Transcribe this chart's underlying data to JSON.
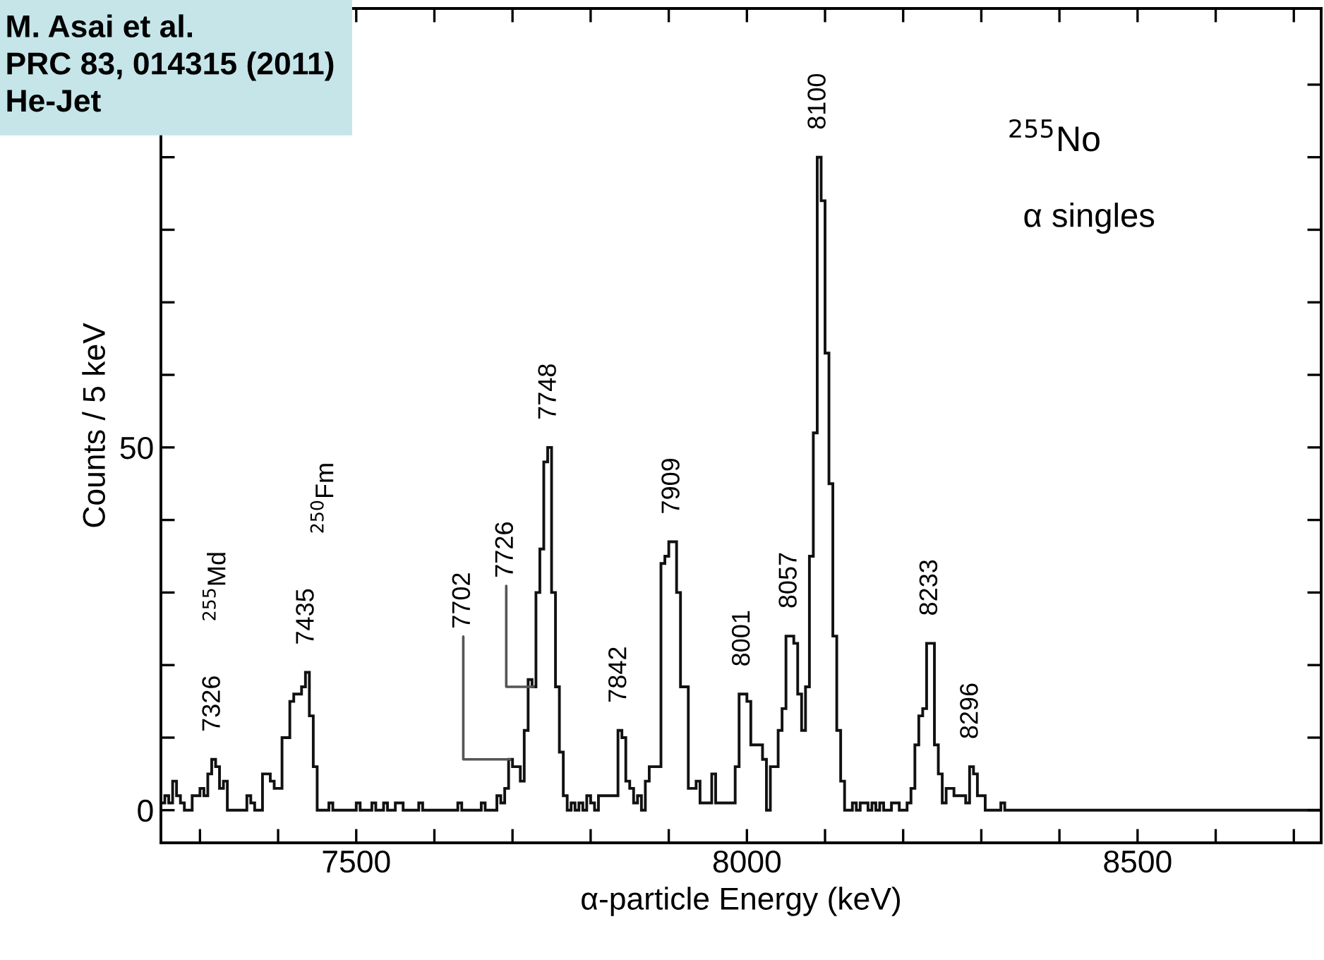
{
  "chart_data": {
    "type": "histogram",
    "xlabel": "α-particle Energy (keV)",
    "ylabel": "Counts / 5 keV",
    "bins": [
      7250,
      7255,
      7260,
      7265,
      7270,
      7275,
      7280,
      7290,
      7300,
      7305,
      7310,
      7315,
      7320,
      7325,
      7330,
      7335,
      7360,
      7365,
      7370,
      7380,
      7390,
      7395,
      7405,
      7415,
      7420,
      7430,
      7435,
      7440,
      7445,
      7450,
      7465,
      7470,
      7500,
      7505,
      7520,
      7525,
      7535,
      7540,
      7550,
      7560,
      7580,
      7585,
      7630,
      7635,
      7660,
      7665,
      7680,
      7685,
      7690,
      7695,
      7700,
      7705,
      7710,
      7715,
      7720,
      7725,
      7730,
      7735,
      7740,
      7745,
      7750,
      7755,
      7760,
      7765,
      7770,
      7775,
      7780,
      7785,
      7790,
      7795,
      7800,
      7805,
      7810,
      7835,
      7840,
      7845,
      7850,
      7855,
      7860,
      7865,
      7870,
      7875,
      7880,
      7890,
      7895,
      7900,
      7910,
      7915,
      7925,
      7935,
      7940,
      7955,
      7960,
      7985,
      7990,
      8000,
      8005,
      8020,
      8025,
      8030,
      8040,
      8045,
      8050,
      8060,
      8065,
      8070,
      8075,
      8080,
      8085,
      8090,
      8095,
      8100,
      8105,
      8110,
      8115,
      8120,
      8125,
      8135,
      8140,
      8145,
      8155,
      8160,
      8165,
      8170,
      8175,
      8185,
      8195,
      8205,
      8210,
      8215,
      8220,
      8225,
      8230,
      8240,
      8245,
      8250,
      8255,
      8265,
      8280,
      8285,
      8290,
      8295,
      8305,
      8325,
      8330,
      8735
    ],
    "values": [
      1,
      2,
      1,
      4,
      2,
      1,
      0,
      2,
      3,
      2,
      5,
      7,
      6,
      3,
      4,
      0,
      2,
      1,
      0,
      5,
      4,
      3,
      10,
      15,
      16,
      17,
      19,
      13,
      6,
      0,
      1,
      0,
      1,
      0,
      1,
      0,
      1,
      0,
      1,
      0,
      1,
      0,
      1,
      0,
      1,
      0,
      2,
      1,
      3,
      7,
      6,
      6,
      4,
      11,
      18,
      17,
      30,
      36,
      48,
      50,
      30,
      17,
      8,
      2,
      0,
      1,
      0,
      1,
      0,
      2,
      1,
      0,
      2,
      11,
      10,
      4,
      3,
      1,
      2,
      0,
      4,
      6,
      6,
      34,
      35,
      37,
      30,
      17,
      3,
      4,
      1,
      5,
      1,
      6,
      16,
      15,
      9,
      7,
      0,
      6,
      11,
      14,
      24,
      23,
      16,
      11,
      17,
      35,
      52,
      90,
      84,
      63,
      45,
      24,
      11,
      4,
      0,
      1,
      0,
      1,
      0,
      1,
      0,
      1,
      0,
      1,
      0,
      1,
      3,
      9,
      13,
      14,
      23,
      9,
      5,
      1,
      3,
      2,
      1,
      6,
      5,
      2,
      0,
      1,
      0
    ],
    "color": "#111111",
    "xlim": [
      7250,
      8735
    ],
    "xticks": [
      {
        "value": 7300,
        "label": null
      },
      {
        "value": 7400,
        "label": null
      },
      7500,
      {
        "value": 7600,
        "label": null
      },
      {
        "value": 7700,
        "label": null
      },
      {
        "value": 7800,
        "label": null
      },
      {
        "value": 7900,
        "label": null
      },
      8000,
      {
        "value": 8100,
        "label": null
      },
      {
        "value": 8200,
        "label": null
      },
      {
        "value": 8300,
        "label": null
      },
      {
        "value": 8400,
        "label": null
      },
      8500,
      {
        "value": 8600,
        "label": null
      },
      {
        "value": 8700,
        "label": null
      }
    ],
    "ylim": [
      -4.5,
      110.5
    ],
    "yticks": [
      0,
      {
        "value": 10,
        "label": null
      },
      {
        "value": 20,
        "label": null
      },
      {
        "value": 30,
        "label": null
      },
      {
        "value": 40,
        "label": null
      },
      50,
      {
        "value": 60,
        "label": null
      },
      {
        "value": 70,
        "label": null
      },
      {
        "value": 80,
        "label": null
      },
      {
        "value": 90,
        "label": null
      },
      {
        "value": 100,
        "label": null
      }
    ],
    "grid": false,
    "annotations": [
      "M. Asai et al.\nPRC 83, 014315 (2011)\nHe-Jet",
      "$^{255}$No",
      "α singles",
      {
        "text": "7326",
        "x": 7317,
        "y": 7
      },
      "$^{255}$Md",
      {
        "text": "7435",
        "x": 7437,
        "y": 19
      },
      "$^{250}$Fm",
      {
        "text": "7702",
        "x": 7697,
        "y": 7
      },
      {
        "text": "7726",
        "x": 7727,
        "y": 17
      },
      {
        "text": "7748",
        "x": 7747,
        "y": 50
      },
      {
        "text": "7842",
        "x": 7837,
        "y": 11
      },
      {
        "text": "7909",
        "x": 7905,
        "y": 37
      },
      {
        "text": "8001",
        "x": 7995,
        "y": 16
      },
      {
        "text": "8057",
        "x": 8055,
        "y": 24
      },
      {
        "text": "8100",
        "x": 8092,
        "y": 90
      },
      {
        "text": "8233",
        "x": 8235,
        "y": 23
      },
      {
        "text": "8296",
        "x": 8287,
        "y": 6
      }
    ]
  }
}
